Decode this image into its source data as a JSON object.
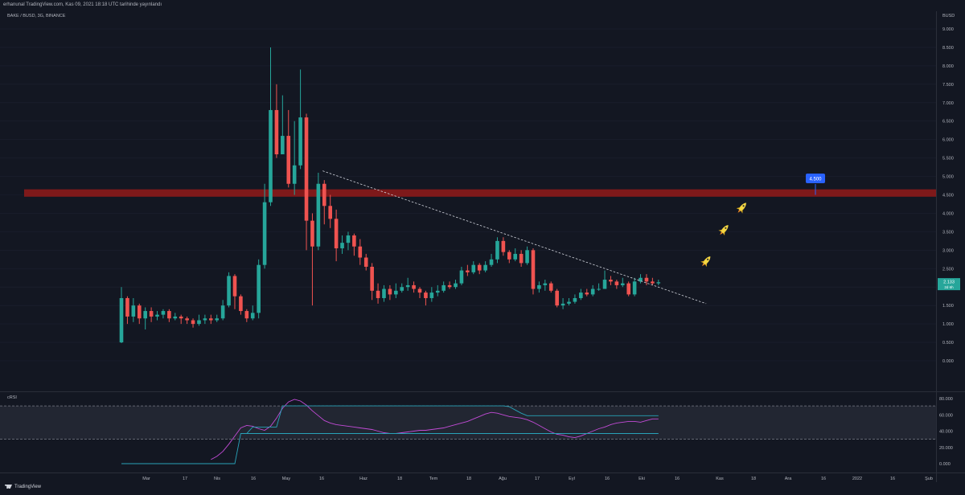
{
  "header": {
    "attribution": "erhanunal TradingView.com, Kas 09, 2021 18:18 UTC tarihinde yayınlandı"
  },
  "symbol": "BAKE / BUSD, 3G, BINANCE",
  "currency": "BUSD",
  "indicator_label": "cRSI",
  "footer": {
    "brand": "TradingView"
  },
  "colors": {
    "background": "#131722",
    "up": "#26a69a",
    "down": "#ef5350",
    "resistance": "#8b1a1a",
    "target_marker": "#2962ff",
    "price_marker": "#26a69a",
    "crsi_line": "#c24bd6",
    "crsi_band": "#28a2b8"
  },
  "icons": [
    "rocket-icon",
    "rocket-icon",
    "rocket-icon",
    "tradingview-logo-icon"
  ],
  "chart_data": [
    {
      "type": "candlestick",
      "title": "BAKE / BUSD, 3G, BINANCE",
      "ylim": [
        0,
        9.0
      ],
      "y_ticks": [
        "0.000",
        "0.500",
        "1.000",
        "1.500",
        "2.000",
        "2.500",
        "3.000",
        "3.500",
        "4.000",
        "4.500",
        "5.000",
        "5.500",
        "6.000",
        "6.500",
        "7.000",
        "7.500",
        "8.000",
        "8.500",
        "9.000"
      ],
      "x_ticks": [
        "Mar",
        "17",
        "Nis",
        "16",
        "May",
        "16",
        "Haz",
        "18",
        "Tem",
        "18",
        "Ağu",
        "17",
        "Eyl",
        "16",
        "Eki",
        "16",
        "Kas",
        "18",
        "Ara",
        "16",
        "2022",
        "16",
        "Şub"
      ],
      "candles": [
        [
          0.5,
          1.7,
          2.0,
          0.48
        ],
        [
          1.7,
          1.2,
          1.75,
          1.0
        ],
        [
          1.2,
          1.5,
          1.7,
          1.05
        ],
        [
          1.5,
          1.15,
          1.55,
          1.0
        ],
        [
          1.15,
          1.35,
          1.45,
          0.85
        ],
        [
          1.35,
          1.2,
          1.45,
          1.05
        ],
        [
          1.2,
          1.25,
          1.35,
          1.1
        ],
        [
          1.25,
          1.35,
          1.4,
          1.15
        ],
        [
          1.35,
          1.15,
          1.4,
          1.05
        ],
        [
          1.15,
          1.2,
          1.3,
          1.1
        ],
        [
          1.2,
          1.15,
          1.25,
          1.0
        ],
        [
          1.15,
          1.1,
          1.2,
          1.0
        ],
        [
          1.1,
          1.0,
          1.15,
          0.9
        ],
        [
          1.0,
          1.1,
          1.25,
          0.95
        ],
        [
          1.1,
          1.15,
          1.25,
          1.0
        ],
        [
          1.15,
          1.1,
          1.25,
          1.0
        ],
        [
          1.1,
          1.15,
          1.25,
          1.05
        ],
        [
          1.15,
          1.5,
          1.65,
          1.1
        ],
        [
          1.5,
          2.3,
          2.4,
          1.45
        ],
        [
          2.3,
          1.75,
          2.35,
          1.4
        ],
        [
          1.75,
          1.35,
          1.8,
          1.25
        ],
        [
          1.35,
          1.15,
          1.4,
          1.05
        ],
        [
          1.15,
          1.3,
          1.5,
          1.1
        ],
        [
          1.3,
          2.6,
          2.75,
          1.15
        ],
        [
          2.6,
          4.3,
          4.8,
          2.5
        ],
        [
          4.3,
          6.8,
          8.5,
          4.2
        ],
        [
          6.8,
          5.6,
          7.5,
          5.5
        ],
        [
          5.6,
          6.1,
          7.2,
          5.7
        ],
        [
          6.1,
          4.8,
          6.8,
          4.7
        ],
        [
          4.8,
          5.3,
          6.5,
          4.5
        ],
        [
          5.3,
          6.6,
          7.9,
          5.2
        ],
        [
          6.6,
          3.8,
          6.7,
          3.0
        ],
        [
          3.8,
          3.1,
          4.0,
          1.5
        ],
        [
          3.1,
          4.8,
          5.1,
          3.0
        ],
        [
          4.8,
          4.2,
          4.9,
          3.7
        ],
        [
          4.2,
          3.85,
          4.5,
          3.6
        ],
        [
          3.85,
          3.05,
          4.1,
          2.7
        ],
        [
          3.05,
          3.2,
          3.4,
          2.9
        ],
        [
          3.2,
          3.4,
          3.5,
          3.0
        ],
        [
          3.4,
          3.1,
          3.45,
          2.85
        ],
        [
          3.1,
          2.8,
          3.3,
          2.6
        ],
        [
          2.8,
          2.55,
          2.9,
          2.45
        ],
        [
          2.55,
          1.9,
          2.65,
          1.65
        ],
        [
          1.9,
          1.7,
          2.1,
          1.55
        ],
        [
          1.7,
          1.95,
          2.05,
          1.6
        ],
        [
          1.95,
          1.8,
          2.05,
          1.65
        ],
        [
          1.8,
          1.9,
          2.1,
          1.7
        ],
        [
          1.9,
          2.0,
          2.1,
          1.85
        ],
        [
          2.0,
          2.05,
          2.25,
          1.9
        ],
        [
          2.05,
          1.95,
          2.15,
          1.85
        ],
        [
          1.95,
          1.85,
          2.0,
          1.7
        ],
        [
          1.85,
          1.7,
          1.9,
          1.5
        ],
        [
          1.7,
          1.85,
          2.0,
          1.6
        ],
        [
          1.85,
          1.9,
          2.05,
          1.75
        ],
        [
          1.9,
          2.05,
          2.15,
          1.85
        ],
        [
          2.05,
          2.0,
          2.15,
          1.95
        ],
        [
          2.0,
          2.1,
          2.2,
          1.95
        ],
        [
          2.1,
          2.45,
          2.55,
          2.05
        ],
        [
          2.45,
          2.4,
          2.6,
          2.3
        ],
        [
          2.4,
          2.6,
          2.7,
          2.35
        ],
        [
          2.6,
          2.45,
          2.65,
          2.35
        ],
        [
          2.45,
          2.6,
          2.7,
          2.4
        ],
        [
          2.6,
          2.75,
          2.9,
          2.55
        ],
        [
          2.75,
          3.25,
          3.35,
          2.65
        ],
        [
          3.25,
          2.95,
          3.35,
          2.85
        ],
        [
          2.95,
          2.75,
          3.0,
          2.65
        ],
        [
          2.75,
          2.9,
          3.05,
          2.7
        ],
        [
          2.9,
          2.65,
          3.0,
          2.55
        ],
        [
          2.65,
          3.0,
          3.1,
          2.6
        ],
        [
          3.0,
          1.95,
          3.05,
          1.8
        ],
        [
          1.95,
          2.05,
          2.15,
          1.85
        ],
        [
          2.05,
          2.1,
          2.2,
          1.9
        ],
        [
          2.1,
          1.9,
          2.15,
          1.85
        ],
        [
          1.9,
          1.5,
          1.95,
          1.45
        ],
        [
          1.5,
          1.55,
          1.7,
          1.4
        ],
        [
          1.55,
          1.6,
          1.7,
          1.5
        ],
        [
          1.6,
          1.7,
          1.8,
          1.55
        ],
        [
          1.7,
          1.85,
          1.95,
          1.65
        ],
        [
          1.85,
          1.8,
          1.95,
          1.75
        ],
        [
          1.8,
          1.95,
          2.05,
          1.75
        ],
        [
          1.95,
          1.95,
          2.1,
          1.9
        ],
        [
          1.95,
          2.2,
          2.45,
          1.95
        ],
        [
          2.2,
          2.15,
          2.3,
          2.05
        ],
        [
          2.15,
          2.05,
          2.2,
          1.95
        ],
        [
          2.05,
          2.1,
          2.25,
          2.0
        ],
        [
          2.1,
          1.8,
          2.15,
          1.75
        ],
        [
          1.8,
          2.15,
          2.25,
          1.75
        ],
        [
          2.15,
          2.25,
          2.35,
          2.1
        ],
        [
          2.25,
          2.15,
          2.35,
          2.05
        ],
        [
          2.15,
          2.1,
          2.25,
          2.05
        ],
        [
          2.1,
          2.13,
          2.2,
          2.05
        ]
      ],
      "resistance_zone": [
        4.45,
        4.65
      ],
      "target_level": "4.500",
      "current_price": "2.133",
      "current_price_sub": "2d 6h",
      "trendline": {
        "from_candle": 34,
        "from_price": 5.15,
        "to_candle": 98,
        "to_price": 1.55
      },
      "rocket_positions": [
        {
          "candle": 98,
          "price": 2.7
        },
        {
          "candle": 101,
          "price": 3.55
        },
        {
          "candle": 104,
          "price": 4.15
        }
      ]
    },
    {
      "type": "line",
      "title": "cRSI",
      "ylim": [
        0,
        80
      ],
      "y_ticks": [
        "0.000",
        "20.000",
        "40.000",
        "60.000",
        "80.000"
      ],
      "bands": [
        71,
        30
      ],
      "series": [
        {
          "values": [
            null,
            null,
            null,
            null,
            null,
            null,
            null,
            null,
            null,
            null,
            null,
            null,
            null,
            null,
            null,
            5,
            9,
            15,
            24,
            34,
            44,
            47,
            46,
            43,
            41,
            46,
            56,
            68,
            76,
            79,
            77,
            72,
            65,
            59,
            53,
            50,
            48,
            47,
            46,
            45,
            44,
            43,
            42,
            40,
            38,
            37,
            37,
            38,
            39,
            40,
            41,
            41,
            42,
            43,
            44,
            46,
            48,
            50,
            52,
            55,
            58,
            61,
            63,
            62,
            60,
            58,
            57,
            56,
            54,
            51,
            47,
            43,
            39,
            36,
            35,
            33,
            32,
            34,
            37,
            40,
            43,
            45,
            48,
            50,
            51,
            52,
            52,
            51,
            53,
            55,
            55
          ]
        },
        {
          "values": [
            0,
            0,
            0,
            0,
            0,
            0,
            0,
            0,
            0,
            0,
            0,
            0,
            0,
            0,
            0,
            0,
            0,
            0,
            0,
            0,
            37,
            37,
            45,
            45,
            45,
            45,
            45,
            71,
            71,
            71,
            71,
            71,
            71,
            71,
            71,
            71,
            71,
            71,
            71,
            71,
            71,
            71,
            71,
            71,
            71,
            71,
            71,
            71,
            71,
            71,
            71,
            71,
            71,
            71,
            71,
            71,
            71,
            71,
            71,
            71,
            71,
            71,
            71,
            71,
            71,
            70,
            66,
            62,
            59,
            59,
            59,
            59,
            59,
            59,
            59,
            59,
            59,
            59,
            59,
            59,
            59,
            59,
            59,
            59,
            59,
            59,
            59,
            59,
            59,
            59,
            59
          ]
        },
        {
          "values": [
            null,
            null,
            null,
            null,
            null,
            null,
            null,
            null,
            null,
            null,
            null,
            null,
            null,
            null,
            null,
            null,
            null,
            null,
            null,
            null,
            37,
            37,
            37,
            37,
            37,
            37,
            37,
            37,
            37,
            37,
            37,
            37,
            37,
            37,
            37,
            37,
            37,
            37,
            37,
            37,
            37,
            37,
            37,
            37,
            37,
            37,
            37,
            37,
            37,
            37,
            37,
            37,
            37,
            37,
            37,
            37,
            37,
            37,
            37,
            37,
            37,
            37,
            37,
            37,
            37,
            37,
            37,
            37,
            37,
            37,
            37,
            37,
            37,
            37,
            37,
            37,
            37,
            37,
            37,
            37,
            37,
            37,
            37,
            37,
            37,
            37,
            37,
            37,
            37,
            37,
            37
          ]
        }
      ]
    }
  ]
}
